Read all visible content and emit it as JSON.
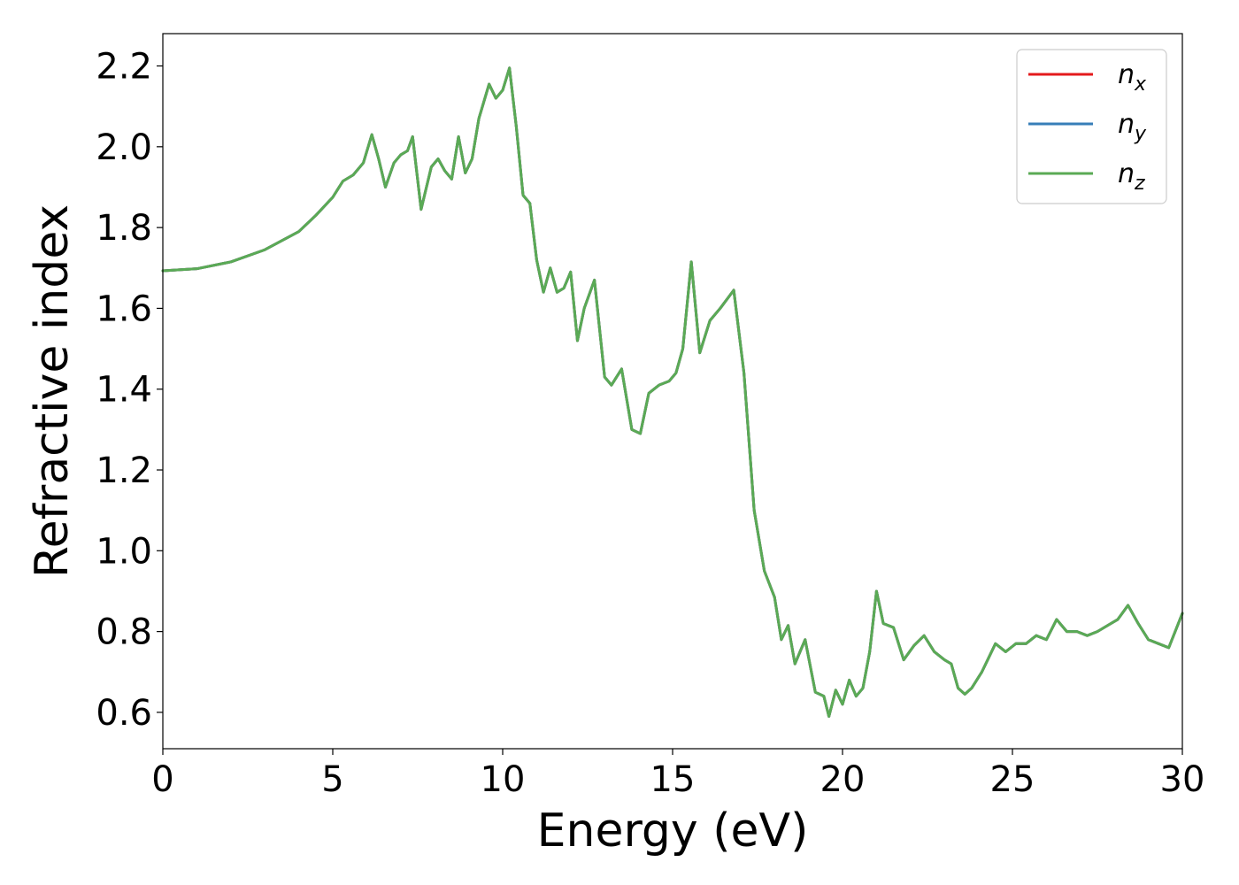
{
  "chart_data": {
    "type": "line",
    "title": "",
    "xlabel": "Energy (eV)",
    "ylabel": "Refractive index",
    "xlim": [
      0,
      30
    ],
    "ylim": [
      0.51,
      2.28
    ],
    "xticks": [
      0,
      5,
      10,
      15,
      20,
      25,
      30
    ],
    "yticks": [
      0.6,
      0.8,
      1.0,
      1.2,
      1.4,
      1.6,
      1.8,
      2.0,
      2.2
    ],
    "xtick_labels": [
      "0",
      "5",
      "10",
      "15",
      "20",
      "25",
      "30"
    ],
    "ytick_labels": [
      "0.6",
      "0.8",
      "1.0",
      "1.2",
      "1.4",
      "1.6",
      "1.8",
      "2.0",
      "2.2"
    ],
    "grid": false,
    "legend_position": "top-right",
    "series": [
      {
        "name": "n",
        "subscript": "x",
        "color": "#e41a1c",
        "x": [
          0,
          1,
          2,
          3,
          4,
          4.5,
          5,
          5.3,
          5.6,
          5.9,
          6.15,
          6.35,
          6.55,
          6.8,
          7.0,
          7.2,
          7.35,
          7.6,
          7.9,
          8.1,
          8.3,
          8.5,
          8.7,
          8.9,
          9.1,
          9.3,
          9.6,
          9.8,
          10.0,
          10.2,
          10.4,
          10.6,
          10.8,
          11.0,
          11.2,
          11.4,
          11.6,
          11.8,
          12.0,
          12.2,
          12.4,
          12.7,
          13.0,
          13.2,
          13.5,
          13.8,
          14.05,
          14.3,
          14.6,
          14.9,
          15.1,
          15.3,
          15.55,
          15.8,
          16.1,
          16.4,
          16.8,
          17.1,
          17.4,
          17.7,
          18.0,
          18.2,
          18.4,
          18.6,
          18.9,
          19.2,
          19.45,
          19.6,
          19.8,
          20.0,
          20.2,
          20.4,
          20.6,
          20.8,
          21.0,
          21.2,
          21.5,
          21.8,
          22.1,
          22.4,
          22.7,
          23.0,
          23.2,
          23.4,
          23.6,
          23.8,
          24.1,
          24.5,
          24.8,
          25.1,
          25.4,
          25.7,
          26.0,
          26.3,
          26.6,
          26.9,
          27.2,
          27.5,
          27.8,
          28.1,
          28.4,
          28.7,
          29.0,
          29.3,
          29.6,
          30.0
        ],
        "y": [
          1.693,
          1.698,
          1.715,
          1.745,
          1.79,
          1.83,
          1.875,
          1.915,
          1.93,
          1.96,
          2.03,
          1.97,
          1.9,
          1.96,
          1.98,
          1.99,
          2.025,
          1.845,
          1.95,
          1.97,
          1.94,
          1.92,
          2.025,
          1.935,
          1.97,
          2.07,
          2.155,
          2.12,
          2.14,
          2.195,
          2.05,
          1.88,
          1.86,
          1.72,
          1.64,
          1.7,
          1.64,
          1.65,
          1.69,
          1.52,
          1.6,
          1.67,
          1.43,
          1.41,
          1.45,
          1.3,
          1.29,
          1.39,
          1.41,
          1.42,
          1.44,
          1.5,
          1.715,
          1.49,
          1.57,
          1.6,
          1.645,
          1.44,
          1.1,
          0.95,
          0.885,
          0.78,
          0.815,
          0.72,
          0.78,
          0.65,
          0.64,
          0.59,
          0.655,
          0.62,
          0.68,
          0.64,
          0.66,
          0.75,
          0.9,
          0.82,
          0.81,
          0.73,
          0.765,
          0.79,
          0.75,
          0.73,
          0.72,
          0.66,
          0.645,
          0.66,
          0.7,
          0.77,
          0.75,
          0.77,
          0.77,
          0.79,
          0.78,
          0.83,
          0.8,
          0.8,
          0.79,
          0.8,
          0.815,
          0.83,
          0.865,
          0.82,
          0.78,
          0.77,
          0.76,
          0.845
        ]
      },
      {
        "name": "n",
        "subscript": "y",
        "color": "#377eb8",
        "x": [
          0,
          1,
          2,
          3,
          4,
          4.5,
          5,
          5.3,
          5.6,
          5.9,
          6.15,
          6.35,
          6.55,
          6.8,
          7.0,
          7.2,
          7.35,
          7.6,
          7.9,
          8.1,
          8.3,
          8.5,
          8.7,
          8.9,
          9.1,
          9.3,
          9.6,
          9.8,
          10.0,
          10.2,
          10.4,
          10.6,
          10.8,
          11.0,
          11.2,
          11.4,
          11.6,
          11.8,
          12.0,
          12.2,
          12.4,
          12.7,
          13.0,
          13.2,
          13.5,
          13.8,
          14.05,
          14.3,
          14.6,
          14.9,
          15.1,
          15.3,
          15.55,
          15.8,
          16.1,
          16.4,
          16.8,
          17.1,
          17.4,
          17.7,
          18.0,
          18.2,
          18.4,
          18.6,
          18.9,
          19.2,
          19.45,
          19.6,
          19.8,
          20.0,
          20.2,
          20.4,
          20.6,
          20.8,
          21.0,
          21.2,
          21.5,
          21.8,
          22.1,
          22.4,
          22.7,
          23.0,
          23.2,
          23.4,
          23.6,
          23.8,
          24.1,
          24.5,
          24.8,
          25.1,
          25.4,
          25.7,
          26.0,
          26.3,
          26.6,
          26.9,
          27.2,
          27.5,
          27.8,
          28.1,
          28.4,
          28.7,
          29.0,
          29.3,
          29.6,
          30.0
        ],
        "y": [
          1.693,
          1.698,
          1.715,
          1.745,
          1.79,
          1.83,
          1.875,
          1.915,
          1.93,
          1.96,
          2.03,
          1.97,
          1.9,
          1.96,
          1.98,
          1.99,
          2.025,
          1.845,
          1.95,
          1.97,
          1.94,
          1.92,
          2.025,
          1.935,
          1.97,
          2.07,
          2.155,
          2.12,
          2.14,
          2.195,
          2.05,
          1.88,
          1.86,
          1.72,
          1.64,
          1.7,
          1.64,
          1.65,
          1.69,
          1.52,
          1.6,
          1.67,
          1.43,
          1.41,
          1.45,
          1.3,
          1.29,
          1.39,
          1.41,
          1.42,
          1.44,
          1.5,
          1.715,
          1.49,
          1.57,
          1.6,
          1.645,
          1.44,
          1.1,
          0.95,
          0.885,
          0.78,
          0.815,
          0.72,
          0.78,
          0.65,
          0.64,
          0.59,
          0.655,
          0.62,
          0.68,
          0.64,
          0.66,
          0.75,
          0.9,
          0.82,
          0.81,
          0.73,
          0.765,
          0.79,
          0.75,
          0.73,
          0.72,
          0.66,
          0.645,
          0.66,
          0.7,
          0.77,
          0.75,
          0.77,
          0.77,
          0.79,
          0.78,
          0.83,
          0.8,
          0.8,
          0.79,
          0.8,
          0.815,
          0.83,
          0.865,
          0.82,
          0.78,
          0.77,
          0.76,
          0.845
        ]
      },
      {
        "name": "n",
        "subscript": "z",
        "color": "#5aaa55",
        "x": [
          0,
          1,
          2,
          3,
          4,
          4.5,
          5,
          5.3,
          5.6,
          5.9,
          6.15,
          6.35,
          6.55,
          6.8,
          7.0,
          7.2,
          7.35,
          7.6,
          7.9,
          8.1,
          8.3,
          8.5,
          8.7,
          8.9,
          9.1,
          9.3,
          9.6,
          9.8,
          10.0,
          10.2,
          10.4,
          10.6,
          10.8,
          11.0,
          11.2,
          11.4,
          11.6,
          11.8,
          12.0,
          12.2,
          12.4,
          12.7,
          13.0,
          13.2,
          13.5,
          13.8,
          14.05,
          14.3,
          14.6,
          14.9,
          15.1,
          15.3,
          15.55,
          15.8,
          16.1,
          16.4,
          16.8,
          17.1,
          17.4,
          17.7,
          18.0,
          18.2,
          18.4,
          18.6,
          18.9,
          19.2,
          19.45,
          19.6,
          19.8,
          20.0,
          20.2,
          20.4,
          20.6,
          20.8,
          21.0,
          21.2,
          21.5,
          21.8,
          22.1,
          22.4,
          22.7,
          23.0,
          23.2,
          23.4,
          23.6,
          23.8,
          24.1,
          24.5,
          24.8,
          25.1,
          25.4,
          25.7,
          26.0,
          26.3,
          26.6,
          26.9,
          27.2,
          27.5,
          27.8,
          28.1,
          28.4,
          28.7,
          29.0,
          29.3,
          29.6,
          30.0
        ],
        "y": [
          1.693,
          1.698,
          1.715,
          1.745,
          1.79,
          1.83,
          1.875,
          1.915,
          1.93,
          1.96,
          2.03,
          1.97,
          1.9,
          1.96,
          1.98,
          1.99,
          2.025,
          1.845,
          1.95,
          1.97,
          1.94,
          1.92,
          2.025,
          1.935,
          1.97,
          2.07,
          2.155,
          2.12,
          2.14,
          2.195,
          2.05,
          1.88,
          1.86,
          1.72,
          1.64,
          1.7,
          1.64,
          1.65,
          1.69,
          1.52,
          1.6,
          1.67,
          1.43,
          1.41,
          1.45,
          1.3,
          1.29,
          1.39,
          1.41,
          1.42,
          1.44,
          1.5,
          1.715,
          1.49,
          1.57,
          1.6,
          1.645,
          1.44,
          1.1,
          0.95,
          0.885,
          0.78,
          0.815,
          0.72,
          0.78,
          0.65,
          0.64,
          0.59,
          0.655,
          0.62,
          0.68,
          0.64,
          0.66,
          0.75,
          0.9,
          0.82,
          0.81,
          0.73,
          0.765,
          0.79,
          0.75,
          0.73,
          0.72,
          0.66,
          0.645,
          0.66,
          0.7,
          0.77,
          0.75,
          0.77,
          0.77,
          0.79,
          0.78,
          0.83,
          0.8,
          0.8,
          0.79,
          0.8,
          0.815,
          0.83,
          0.865,
          0.82,
          0.78,
          0.77,
          0.76,
          0.845
        ]
      }
    ]
  }
}
